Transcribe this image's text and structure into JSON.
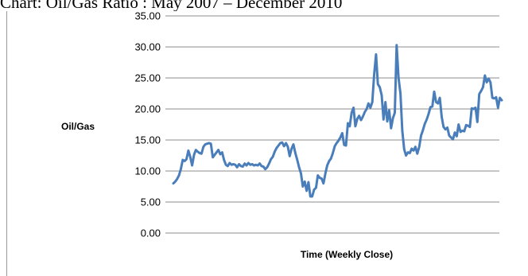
{
  "page": {
    "title": "Chart: Oil/Gas Ratio : May 2007 – December 2010"
  },
  "chart_data": {
    "type": "line",
    "title": "Chart: Oil/Gas Ratio : May 2007 – December 2010",
    "ylabel": "Oil/Gas",
    "xlabel": "Time (Weekly Close)",
    "ylim": [
      0,
      35
    ],
    "y_ticks": [
      "0.00",
      "5.00",
      "10.00",
      "15.00",
      "20.00",
      "25.00",
      "30.00",
      "35.00"
    ],
    "grid": "horizontal",
    "line_color": "#4a7ebb",
    "series": [
      {
        "values": [
          8.0,
          8.3,
          8.7,
          9.3,
          10.3,
          11.8,
          11.6,
          11.9,
          13.3,
          12.3,
          10.9,
          12.6,
          13.4,
          13.1,
          12.9,
          12.8,
          13.9,
          14.3,
          14.4,
          14.5,
          14.4,
          12.2,
          12.6,
          13.0,
          13.4,
          12.7,
          13.0,
          11.8,
          11.0,
          10.8,
          11.3,
          11.0,
          11.1,
          11.0,
          10.6,
          11.1,
          10.8,
          10.7,
          11.2,
          10.9,
          11.3,
          11.0,
          11.1,
          10.9,
          11.0,
          10.9,
          11.2,
          10.8,
          10.7,
          10.3,
          10.6,
          11.2,
          11.9,
          12.3,
          13.1,
          13.7,
          14.1,
          14.5,
          14.6,
          14.0,
          14.5,
          13.9,
          12.4,
          13.6,
          14.3,
          12.9,
          11.8,
          10.6,
          9.6,
          7.5,
          8.3,
          6.8,
          8.2,
          5.9,
          5.9,
          7.0,
          7.3,
          9.3,
          8.9,
          8.8,
          8.0,
          9.6,
          10.9,
          11.6,
          12.0,
          12.9,
          14.0,
          14.5,
          14.9,
          15.4,
          16.1,
          14.2,
          14.1,
          17.7,
          17.2,
          19.4,
          20.2,
          17.2,
          18.4,
          18.9,
          18.2,
          18.8,
          19.5,
          20.0,
          20.9,
          20.2,
          21.1,
          25.5,
          28.8,
          24.0,
          23.5,
          22.2,
          18.3,
          21.1,
          18.0,
          19.8,
          16.9,
          18.5,
          19.4,
          30.3,
          25.0,
          22.5,
          16.5,
          13.5,
          12.5,
          13.0,
          12.9,
          13.6,
          13.3,
          13.9,
          12.8,
          13.9,
          15.7,
          16.6,
          17.6,
          18.3,
          19.2,
          20.3,
          20.4,
          22.8,
          21.1,
          20.9,
          21.8,
          18.7,
          17.1,
          16.7,
          17.0,
          15.7,
          15.4,
          15.1,
          16.2,
          15.6,
          17.5,
          16.3,
          16.5,
          16.4,
          17.4,
          17.3,
          17.1,
          20.1,
          20.0,
          20.2,
          17.9,
          22.4,
          22.9,
          23.5,
          25.4,
          24.3,
          24.9,
          24.3,
          21.8,
          21.7,
          21.9,
          20.2,
          21.8,
          21.4
        ]
      }
    ]
  }
}
